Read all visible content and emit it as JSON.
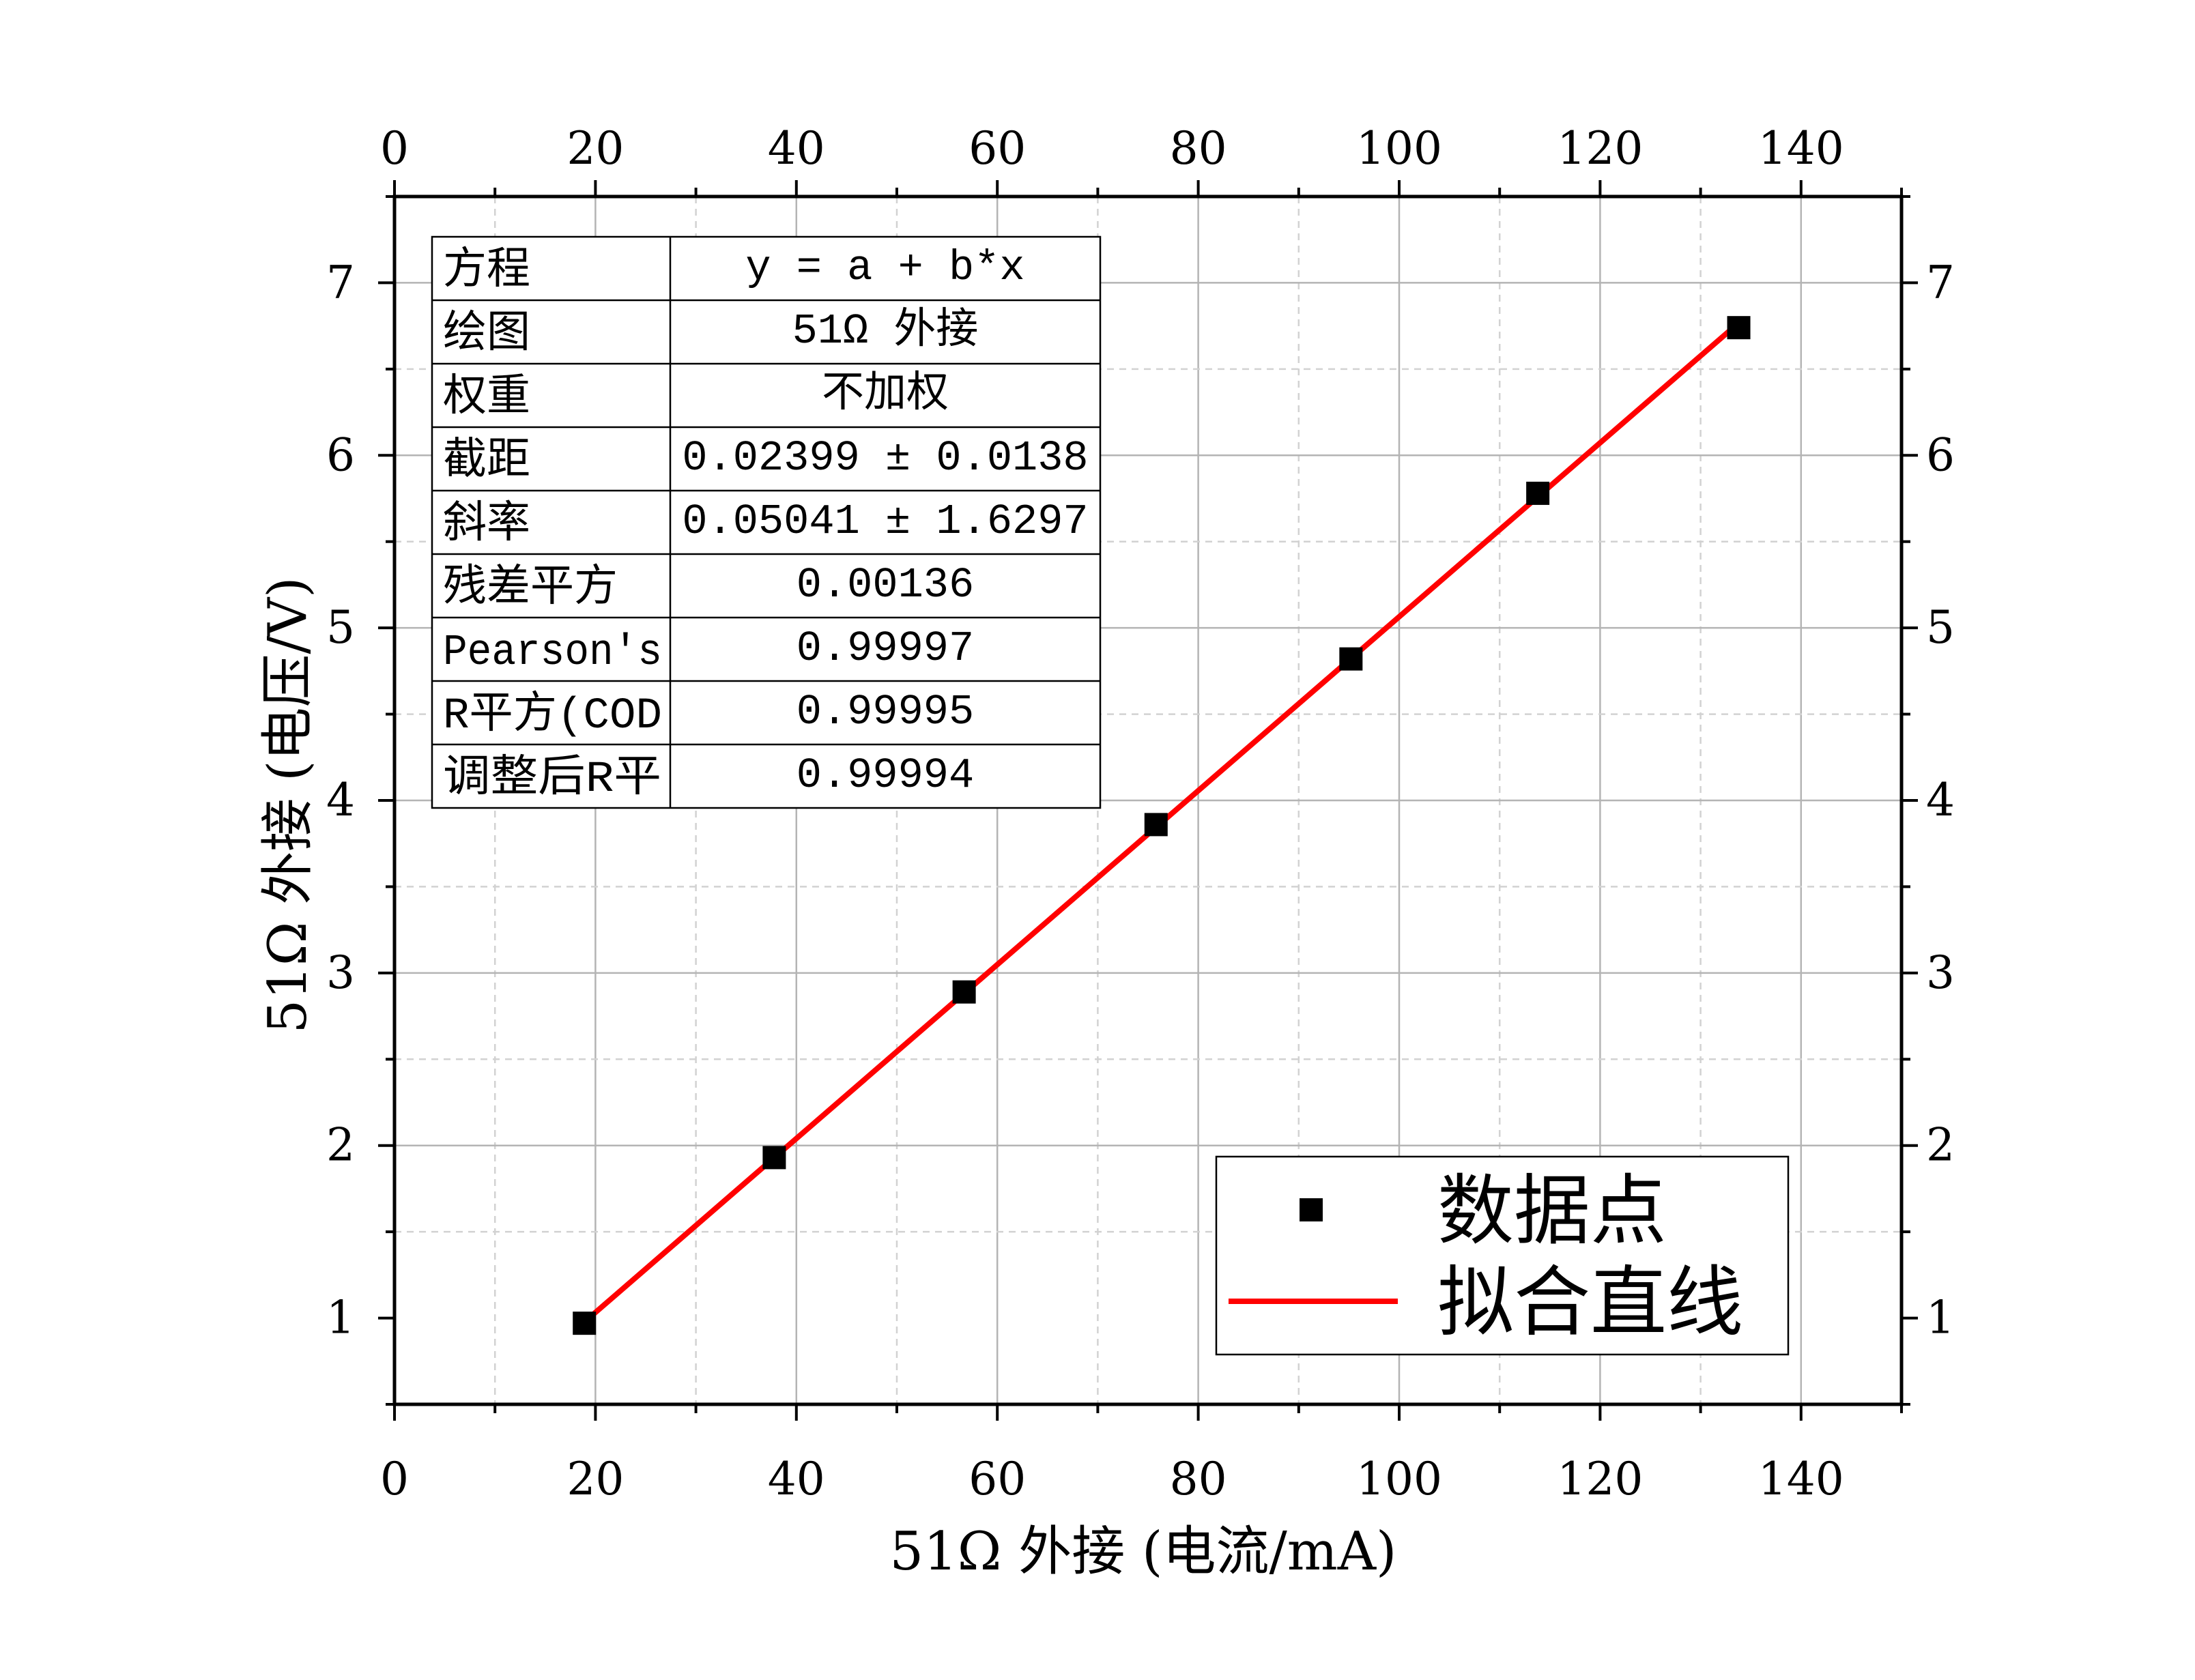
{
  "chart_data": {
    "type": "scatter",
    "xlabel": "51Ω 外接 (电流/mA)",
    "ylabel": "51Ω 外接 (电压/V)",
    "xlim": [
      0,
      150
    ],
    "ylim": [
      0.5,
      7.5
    ],
    "x_ticks": [
      0,
      20,
      40,
      60,
      80,
      100,
      120,
      140
    ],
    "x_tick_labels": [
      "0",
      "20",
      "40",
      "60",
      "80",
      "100",
      "120",
      "140"
    ],
    "y_ticks": [
      1,
      2,
      3,
      4,
      5,
      6,
      7
    ],
    "y_tick_labels": [
      "1",
      "2",
      "3",
      "4",
      "5",
      "6",
      "7"
    ],
    "grid": true,
    "legend_position": "bottom-right",
    "series": [
      {
        "name": "数据点",
        "kind": "scatter",
        "marker": "square",
        "color": "#000000",
        "points": [
          {
            "x": 18.9,
            "y": 0.97
          },
          {
            "x": 37.8,
            "y": 1.93
          },
          {
            "x": 56.7,
            "y": 2.89
          },
          {
            "x": 75.8,
            "y": 3.86
          },
          {
            "x": 95.2,
            "y": 4.82
          },
          {
            "x": 113.8,
            "y": 5.78
          },
          {
            "x": 133.8,
            "y": 6.74
          }
        ]
      },
      {
        "name": "拟合直线",
        "kind": "line",
        "color": "#ff0000",
        "points": [
          {
            "x": 18.9,
            "y": 0.977
          },
          {
            "x": 133.8,
            "y": 6.768
          }
        ]
      }
    ],
    "fit_table": {
      "rows": [
        {
          "label": "方程",
          "value": "y = a + b*x"
        },
        {
          "label": "绘图",
          "value": "51Ω 外接"
        },
        {
          "label": "权重",
          "value": "不加权"
        },
        {
          "label": "截距",
          "value": "0.02399 ± 0.0138"
        },
        {
          "label": "斜率",
          "value": "0.05041 ± 1.6297"
        },
        {
          "label": "残差平方",
          "value": "0.00136"
        },
        {
          "label": "Pearson's",
          "value": "0.99997"
        },
        {
          "label": "R平方(COD",
          "value": "0.99995"
        },
        {
          "label": "调整后R平",
          "value": "0.99994"
        }
      ]
    }
  }
}
